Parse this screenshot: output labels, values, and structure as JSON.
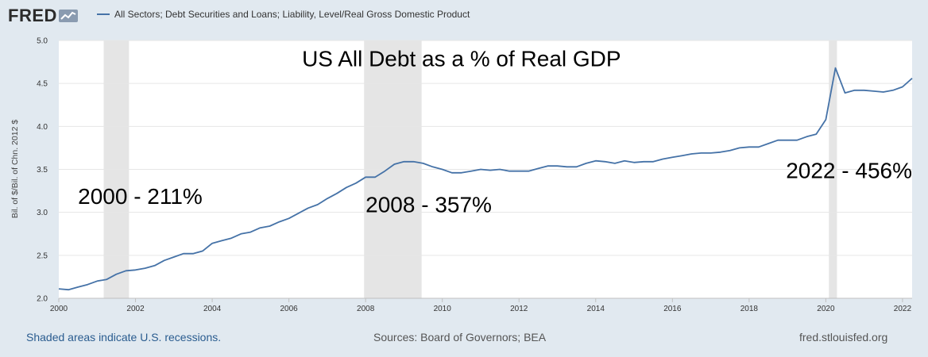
{
  "header": {
    "logo_text": "FRED",
    "logo_icon": "line-chart-icon",
    "series_label": "All Sectors; Debt Securities and Loans; Liability, Level/Real Gross Domestic Product",
    "series_color": "#4572a7"
  },
  "chart_data": {
    "type": "line",
    "ylabel": "Bil. of $/Bil. of Chn. 2012 $",
    "xlim": [
      2000,
      2022.25
    ],
    "ylim": [
      2.0,
      5.0
    ],
    "yticks": [
      "2.0",
      "2.5",
      "3.0",
      "3.5",
      "4.0",
      "4.5",
      "5.0"
    ],
    "xticks": [
      "2000",
      "2002",
      "2004",
      "2006",
      "2008",
      "2010",
      "2012",
      "2014",
      "2016",
      "2018",
      "2020",
      "2022"
    ],
    "grid": true,
    "recessions": [
      [
        2001.17,
        2001.83
      ],
      [
        2007.96,
        2009.46
      ],
      [
        2020.08,
        2020.29
      ]
    ],
    "series": [
      {
        "color": "#4572a7",
        "points": [
          [
            2000.0,
            2.11
          ],
          [
            2000.25,
            2.1
          ],
          [
            2000.5,
            2.13
          ],
          [
            2000.75,
            2.16
          ],
          [
            2001.0,
            2.2
          ],
          [
            2001.25,
            2.22
          ],
          [
            2001.5,
            2.28
          ],
          [
            2001.75,
            2.32
          ],
          [
            2002.0,
            2.33
          ],
          [
            2002.25,
            2.35
          ],
          [
            2002.5,
            2.38
          ],
          [
            2002.75,
            2.44
          ],
          [
            2003.0,
            2.48
          ],
          [
            2003.25,
            2.52
          ],
          [
            2003.5,
            2.52
          ],
          [
            2003.75,
            2.55
          ],
          [
            2004.0,
            2.64
          ],
          [
            2004.25,
            2.67
          ],
          [
            2004.5,
            2.7
          ],
          [
            2004.75,
            2.75
          ],
          [
            2005.0,
            2.77
          ],
          [
            2005.25,
            2.82
          ],
          [
            2005.5,
            2.84
          ],
          [
            2005.75,
            2.89
          ],
          [
            2006.0,
            2.93
          ],
          [
            2006.25,
            2.99
          ],
          [
            2006.5,
            3.05
          ],
          [
            2006.75,
            3.09
          ],
          [
            2007.0,
            3.16
          ],
          [
            2007.25,
            3.22
          ],
          [
            2007.5,
            3.29
          ],
          [
            2007.75,
            3.34
          ],
          [
            2008.0,
            3.41
          ],
          [
            2008.25,
            3.41
          ],
          [
            2008.5,
            3.48
          ],
          [
            2008.75,
            3.56
          ],
          [
            2009.0,
            3.59
          ],
          [
            2009.25,
            3.59
          ],
          [
            2009.5,
            3.57
          ],
          [
            2009.75,
            3.53
          ],
          [
            2010.0,
            3.5
          ],
          [
            2010.25,
            3.46
          ],
          [
            2010.5,
            3.46
          ],
          [
            2010.75,
            3.48
          ],
          [
            2011.0,
            3.5
          ],
          [
            2011.25,
            3.49
          ],
          [
            2011.5,
            3.5
          ],
          [
            2011.75,
            3.48
          ],
          [
            2012.0,
            3.48
          ],
          [
            2012.25,
            3.48
          ],
          [
            2012.5,
            3.51
          ],
          [
            2012.75,
            3.54
          ],
          [
            2013.0,
            3.54
          ],
          [
            2013.25,
            3.53
          ],
          [
            2013.5,
            3.53
          ],
          [
            2013.75,
            3.57
          ],
          [
            2014.0,
            3.6
          ],
          [
            2014.25,
            3.59
          ],
          [
            2014.5,
            3.57
          ],
          [
            2014.75,
            3.6
          ],
          [
            2015.0,
            3.58
          ],
          [
            2015.25,
            3.59
          ],
          [
            2015.5,
            3.59
          ],
          [
            2015.75,
            3.62
          ],
          [
            2016.0,
            3.64
          ],
          [
            2016.25,
            3.66
          ],
          [
            2016.5,
            3.68
          ],
          [
            2016.75,
            3.69
          ],
          [
            2017.0,
            3.69
          ],
          [
            2017.25,
            3.7
          ],
          [
            2017.5,
            3.72
          ],
          [
            2017.75,
            3.75
          ],
          [
            2018.0,
            3.76
          ],
          [
            2018.25,
            3.76
          ],
          [
            2018.5,
            3.8
          ],
          [
            2018.75,
            3.84
          ],
          [
            2019.0,
            3.84
          ],
          [
            2019.25,
            3.84
          ],
          [
            2019.5,
            3.88
          ],
          [
            2019.75,
            3.91
          ],
          [
            2020.0,
            4.08
          ],
          [
            2020.25,
            4.68
          ],
          [
            2020.5,
            4.39
          ],
          [
            2020.75,
            4.42
          ],
          [
            2021.0,
            4.42
          ],
          [
            2021.25,
            4.41
          ],
          [
            2021.5,
            4.4
          ],
          [
            2021.75,
            4.42
          ],
          [
            2022.0,
            4.46
          ],
          [
            2022.25,
            4.56
          ]
        ]
      }
    ],
    "annotations": [
      {
        "text": "US All Debt as a % of Real GDP",
        "x": 2010.5,
        "y": 4.7,
        "size": "large",
        "anchor": "middle"
      },
      {
        "text": "2000 - 211%",
        "x": 2000.5,
        "y": 3.1,
        "size": "medium",
        "anchor": "start"
      },
      {
        "text": "2008 - 357%",
        "x": 2008.0,
        "y": 3.0,
        "size": "medium",
        "anchor": "start"
      },
      {
        "text": "2022 - 456%",
        "x": 2022.25,
        "y": 3.4,
        "size": "medium",
        "anchor": "end"
      }
    ]
  },
  "footer": {
    "left": "Shaded areas indicate U.S. recessions.",
    "middle": "Sources: Board of Governors; BEA",
    "right": "fred.stlouisfed.org"
  }
}
